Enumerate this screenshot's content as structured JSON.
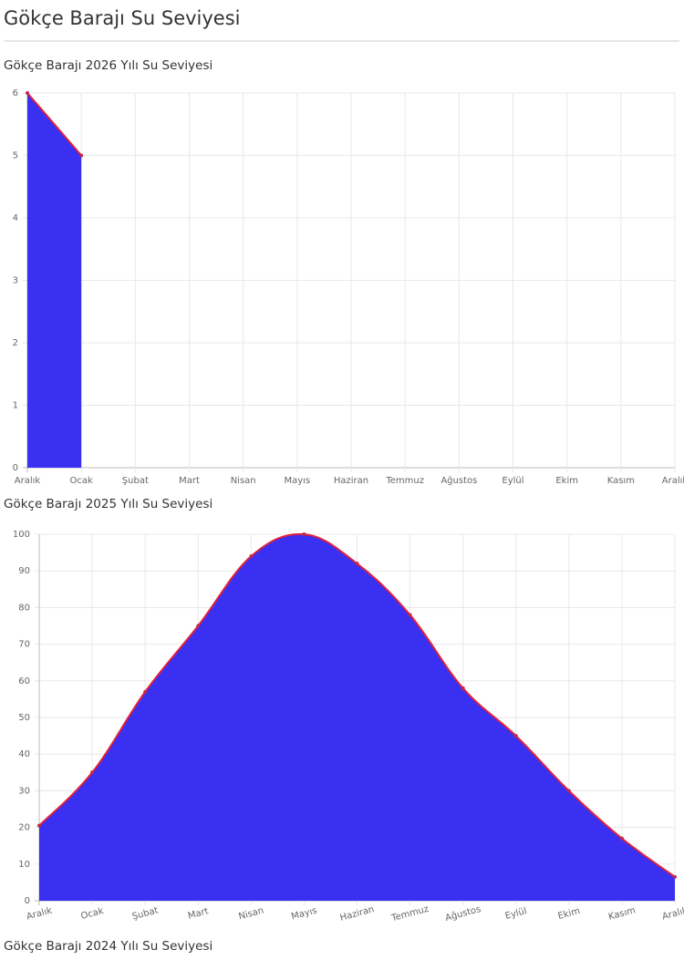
{
  "header": {
    "title": "Gökçe Barajı Su Seviyesi"
  },
  "chart_data": [
    {
      "type": "area",
      "title": "Gökçe Barajı 2026 Yılı Su Seviyesi",
      "categories": [
        "Aralık",
        "Ocak",
        "Şubat",
        "Mart",
        "Nisan",
        "Mayıs",
        "Haziran",
        "Temmuz",
        "Ağustos",
        "Eylül",
        "Ekim",
        "Kasım",
        "Aralık"
      ],
      "values": [
        6,
        5,
        null,
        null,
        null,
        null,
        null,
        null,
        null,
        null,
        null,
        null,
        null
      ],
      "fill": "#3a30f2",
      "line_color": "#e0203a",
      "ylim": [
        0,
        6
      ],
      "yticks": [
        0,
        1,
        2,
        3,
        4,
        5,
        6
      ],
      "grid": true
    },
    {
      "type": "area",
      "title": "Gökçe Barajı 2025 Yılı Su Seviyesi",
      "categories": [
        "Aralık",
        "Ocak",
        "Şubat",
        "Mart",
        "Nisan",
        "Mayıs",
        "Haziran",
        "Temmuz",
        "Ağustos",
        "Eylül",
        "Ekim",
        "Kasım",
        "Aralık"
      ],
      "values": [
        20.5,
        35,
        57,
        75,
        94,
        100,
        92,
        78,
        58,
        45,
        30,
        17,
        6.5
      ],
      "fill": "#3a30f2",
      "line_color": "#e0203a",
      "ylim": [
        0,
        100
      ],
      "yticks": [
        0,
        10,
        20,
        30,
        40,
        50,
        60,
        70,
        80,
        90,
        100
      ],
      "grid": true,
      "rotated_labels": true
    }
  ],
  "next_heading": "Gökçe Barajı 2024 Yılı Su Seviyesi"
}
